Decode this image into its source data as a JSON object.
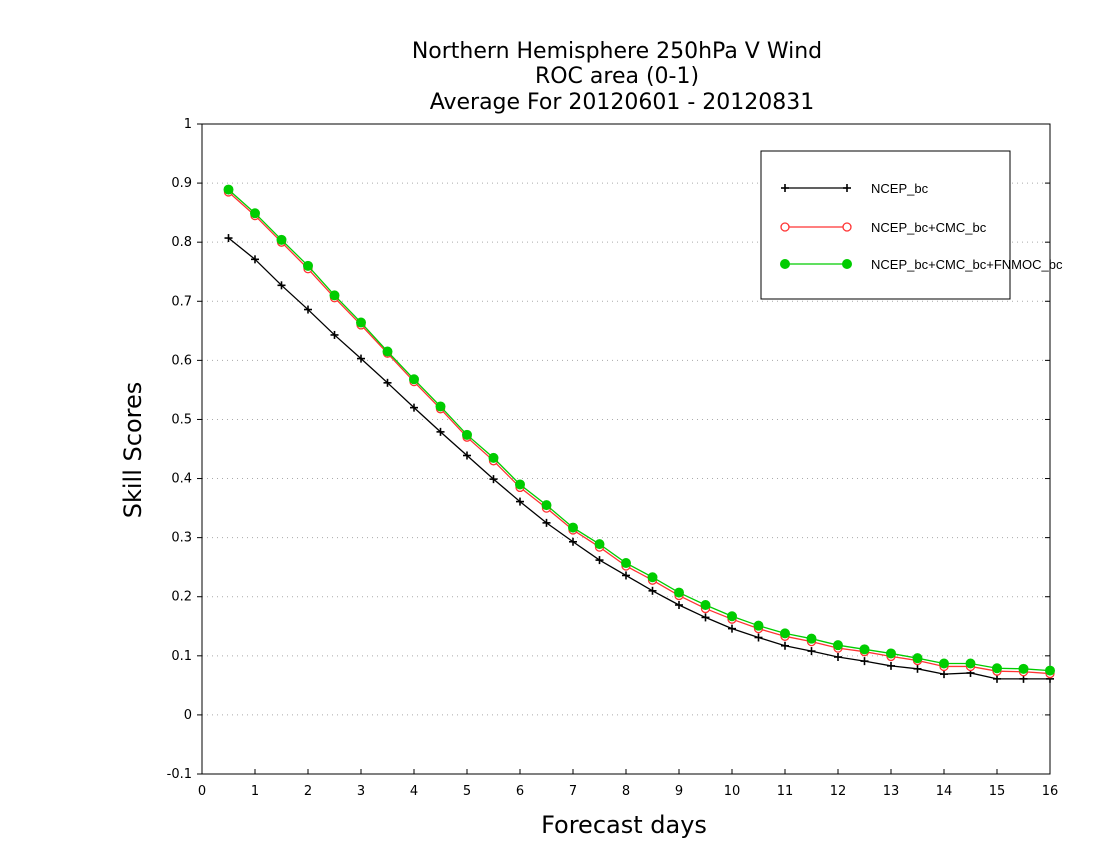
{
  "chart_data": {
    "type": "line",
    "title_lines": [
      "Northern Hemisphere 250hPa V Wind",
      "ROC area (0-1)",
      "Average For 20120601 - 20120831"
    ],
    "xlabel": "Forecast days",
    "ylabel": "Skill Scores",
    "xlim": [
      0,
      16
    ],
    "ylim": [
      -0.1,
      1
    ],
    "x_ticks": [
      "0",
      "1",
      "2",
      "3",
      "4",
      "5",
      "6",
      "7",
      "8",
      "9",
      "10",
      "11",
      "12",
      "13",
      "14",
      "15",
      "16"
    ],
    "y_ticks": [
      "-0.1",
      "0",
      "0.1",
      "0.2",
      "0.3",
      "0.4",
      "0.5",
      "0.6",
      "0.7",
      "0.8",
      "0.9",
      "1"
    ],
    "grid": "horizontal-dotted",
    "legend_position": "top-right",
    "x": [
      0.5,
      1,
      1.5,
      2,
      2.5,
      3,
      3.5,
      4,
      4.5,
      5,
      5.5,
      6,
      6.5,
      7,
      7.5,
      8,
      8.5,
      9,
      9.5,
      10,
      10.5,
      11,
      11.5,
      12,
      12.5,
      13,
      13.5,
      14,
      14.5,
      15,
      15.5,
      16
    ],
    "series": [
      {
        "name": "NCEP_bc",
        "color": "#000000",
        "marker": "plus",
        "values": [
          0.807,
          0.771,
          0.727,
          0.686,
          0.643,
          0.603,
          0.562,
          0.52,
          0.479,
          0.439,
          0.399,
          0.361,
          0.325,
          0.293,
          0.262,
          0.236,
          0.21,
          0.186,
          0.165,
          0.146,
          0.131,
          0.117,
          0.108,
          0.098,
          0.091,
          0.083,
          0.078,
          0.069,
          0.071,
          0.061,
          0.061,
          0.061
        ]
      },
      {
        "name": "NCEP_bc+CMC_bc",
        "color": "#ff3333",
        "marker": "open-circle",
        "values": [
          0.885,
          0.845,
          0.8,
          0.755,
          0.706,
          0.66,
          0.612,
          0.564,
          0.518,
          0.47,
          0.43,
          0.385,
          0.35,
          0.313,
          0.284,
          0.252,
          0.228,
          0.202,
          0.18,
          0.162,
          0.146,
          0.133,
          0.124,
          0.113,
          0.107,
          0.099,
          0.092,
          0.082,
          0.082,
          0.074,
          0.073,
          0.07
        ]
      },
      {
        "name": "NCEP_bc+CMC_bc+FNMOC_bc",
        "color": "#00cc00",
        "marker": "filled-circle",
        "values": [
          0.889,
          0.849,
          0.804,
          0.76,
          0.71,
          0.664,
          0.615,
          0.568,
          0.522,
          0.474,
          0.435,
          0.39,
          0.355,
          0.317,
          0.289,
          0.257,
          0.233,
          0.207,
          0.186,
          0.167,
          0.151,
          0.138,
          0.129,
          0.118,
          0.111,
          0.104,
          0.096,
          0.087,
          0.087,
          0.079,
          0.078,
          0.075
        ]
      }
    ]
  }
}
